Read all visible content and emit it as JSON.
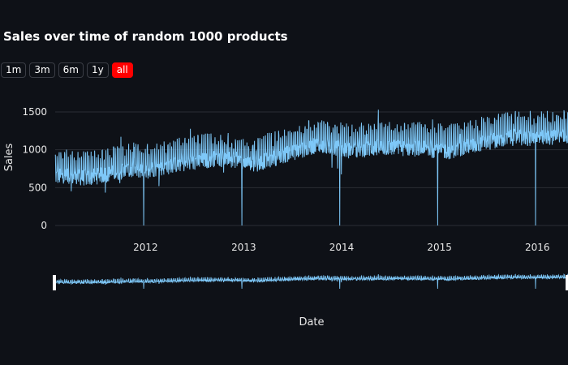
{
  "chart_data": {
    "type": "line",
    "title": "Sales over time of random 1000 products",
    "xlabel": "Date",
    "ylabel": "Sales",
    "x_range": [
      "2011-01-29",
      "2016-04-24"
    ],
    "ylim": [
      0,
      1800
    ],
    "yticks": [
      0,
      500,
      1000,
      1500
    ],
    "xticks": [
      {
        "date": "2012-01-01",
        "label": "2012"
      },
      {
        "date": "2013-01-01",
        "label": "2013"
      },
      {
        "date": "2014-01-01",
        "label": "2014"
      },
      {
        "date": "2015-01-01",
        "label": "2015"
      },
      {
        "date": "2016-01-01",
        "label": "2016"
      }
    ],
    "grid": true,
    "series": [
      {
        "color": "#7ec8f8",
        "monthly_trend": [
          {
            "date": "2011-02-01",
            "value": 720
          },
          {
            "date": "2011-06-01",
            "value": 700
          },
          {
            "date": "2011-10-01",
            "value": 780
          },
          {
            "date": "2012-02-01",
            "value": 820
          },
          {
            "date": "2012-06-01",
            "value": 890
          },
          {
            "date": "2012-10-01",
            "value": 960
          },
          {
            "date": "2013-02-01",
            "value": 870
          },
          {
            "date": "2013-06-01",
            "value": 1000
          },
          {
            "date": "2013-10-01",
            "value": 1130
          },
          {
            "date": "2014-02-01",
            "value": 1060
          },
          {
            "date": "2014-06-01",
            "value": 1100
          },
          {
            "date": "2014-10-01",
            "value": 1090
          },
          {
            "date": "2015-02-01",
            "value": 1050
          },
          {
            "date": "2015-06-01",
            "value": 1150
          },
          {
            "date": "2015-10-01",
            "value": 1230
          },
          {
            "date": "2016-02-01",
            "value": 1220
          },
          {
            "date": "2016-04-24",
            "value": 1250
          }
        ],
        "zero_days": [
          "2011-12-25",
          "2012-12-25",
          "2013-12-25",
          "2014-12-25",
          "2015-12-25"
        ],
        "weekly_amplitude": 200
      }
    ]
  },
  "range_buttons": [
    {
      "label": "1m",
      "active": false
    },
    {
      "label": "3m",
      "active": false
    },
    {
      "label": "6m",
      "active": false
    },
    {
      "label": "1y",
      "active": false
    },
    {
      "label": "all",
      "active": true
    }
  ],
  "colors": {
    "background": "#0e1117",
    "grid": "#2a2d35",
    "line": "#7ec8f8",
    "active_button": "#ff0000"
  }
}
